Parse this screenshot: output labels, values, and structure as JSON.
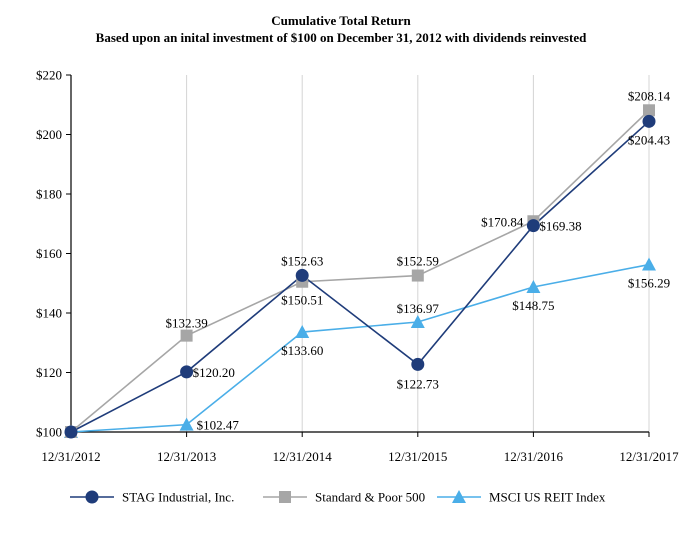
{
  "chart_data": {
    "type": "line",
    "title": "Cumulative Total Return",
    "subtitle": "Based upon an inital investment of $100 on December 31, 2012 with dividends reinvested",
    "categories": [
      "12/31/2012",
      "12/31/2013",
      "12/31/2014",
      "12/31/2015",
      "12/31/2016",
      "12/31/2017"
    ],
    "ylim": [
      100,
      220
    ],
    "yticks": [
      100,
      120,
      140,
      160,
      180,
      200,
      220
    ],
    "ytick_labels": [
      "$100",
      "$120",
      "$140",
      "$160",
      "$180",
      "$200",
      "$220"
    ],
    "grid": "vertical",
    "legend_position": "bottom",
    "series": [
      {
        "name": "STAG Industrial, Inc.",
        "color": "#1f3c7a",
        "marker": "circle",
        "values": [
          100,
          120.2,
          152.63,
          122.73,
          169.38,
          204.43
        ],
        "labels": [
          "",
          "$120.20",
          "$152.63",
          "$122.73",
          "$169.38",
          "$204.43"
        ]
      },
      {
        "name": "Standard & Poor 500",
        "color": "#a6a6a6",
        "marker": "square",
        "values": [
          100,
          132.39,
          150.51,
          152.59,
          170.84,
          208.14
        ],
        "labels": [
          "",
          "$132.39",
          "$150.51",
          "$152.59",
          "$170.84",
          "$208.14"
        ]
      },
      {
        "name": "MSCI US REIT Index",
        "color": "#4aaee8",
        "marker": "triangle",
        "values": [
          100,
          102.47,
          133.6,
          136.97,
          148.75,
          156.29
        ],
        "labels": [
          "",
          "$102.47",
          "$133.60",
          "$136.97",
          "$148.75",
          "$156.29"
        ]
      }
    ]
  }
}
